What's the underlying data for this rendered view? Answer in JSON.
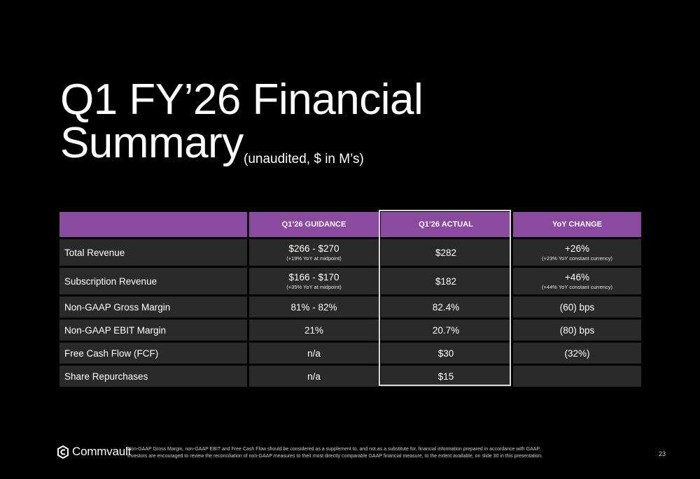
{
  "slide": {
    "title_line1": "Q1 FY’26 Financial",
    "title_line2": "Summary",
    "subtitle": "(unaudited, $ in M’s)",
    "page_number": "23"
  },
  "table": {
    "headers": [
      "",
      "Q1’26 GUIDANCE",
      "Q1’26 ACTUAL",
      "YoY CHANGE"
    ],
    "rows": [
      {
        "metric": "Total Revenue",
        "guidance": "$266 - $270",
        "guidance_note": "(+19% YoY at midpoint)",
        "actual": "$282",
        "yoy": "+26%",
        "yoy_note": "(+23% YoY constant currency)"
      },
      {
        "metric": "Subscription Revenue",
        "guidance": "$166 - $170",
        "guidance_note": "(+35% YoY at midpoint)",
        "actual": "$182",
        "yoy": "+46%",
        "yoy_note": "(+44% YoY constant currency)"
      },
      {
        "metric": "Non-GAAP Gross Margin",
        "guidance": "81% - 82%",
        "actual": "82.4%",
        "yoy": "(60) bps"
      },
      {
        "metric": "Non-GAAP EBIT Margin",
        "guidance": "21%",
        "actual": "20.7%",
        "yoy": "(80) bps"
      },
      {
        "metric": "Free Cash Flow (FCF)",
        "guidance": "n/a",
        "actual": "$30",
        "yoy": "(32%)"
      },
      {
        "metric": "Share Repurchases",
        "guidance": "n/a",
        "actual": "$15",
        "yoy": ""
      }
    ]
  },
  "footer": {
    "logo_text": "Commvault",
    "note_line1": "Non-GAAP Gross Margin, non-GAAP EBIT and Free Cash Flow should be considered as a supplement to, and not as a substitute for, financial information prepared in accordance with GAAP.",
    "note_line2": "Investors are encouraged to review the reconciliation of non-GAAP measures to their most directly comparable GAAP financial measure, to the extent available, on slide 30 in this presentation."
  },
  "colors": {
    "header_purple": "#8a4aa0",
    "row_gray": "#2a2a2b",
    "background": "#000000"
  }
}
